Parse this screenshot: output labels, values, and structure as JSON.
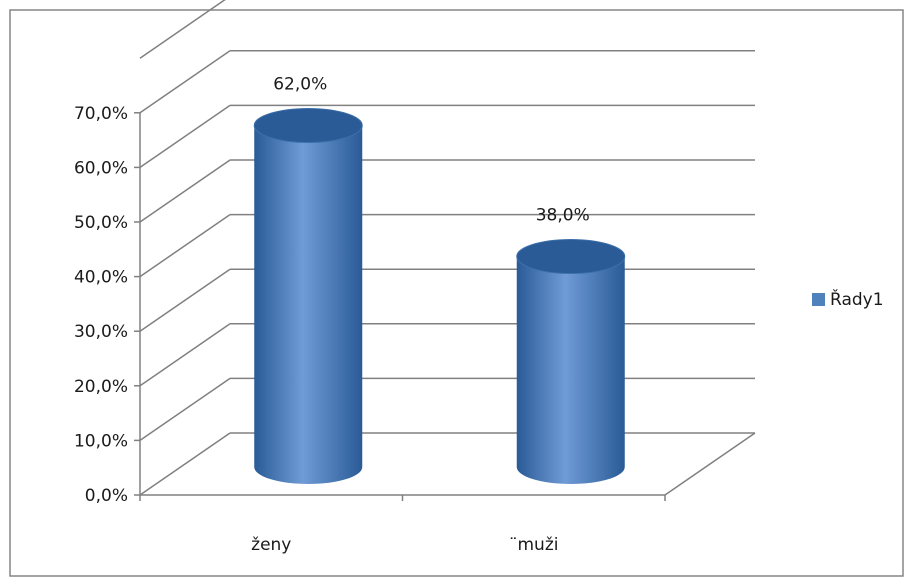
{
  "chart_data": {
    "type": "bar",
    "style": "3d-cylinder",
    "categories": [
      "ženy",
      "¨muži"
    ],
    "series": [
      {
        "name": "Řady1",
        "values": [
          62.0,
          38.0
        ]
      }
    ],
    "data_labels": [
      "62,0%",
      "38,0%"
    ],
    "y_ticks": [
      "0,0%",
      "10,0%",
      "20,0%",
      "30,0%",
      "40,0%",
      "50,0%",
      "60,0%",
      "70,0%"
    ],
    "ylim": [
      0,
      70
    ],
    "grid": true,
    "legend_position": "right",
    "colors": {
      "bar": "#4f81bd",
      "bar_dark": "#2a5b96",
      "bar_light": "#6f9bd6",
      "grid": "#808080",
      "frame": "#868686"
    }
  }
}
